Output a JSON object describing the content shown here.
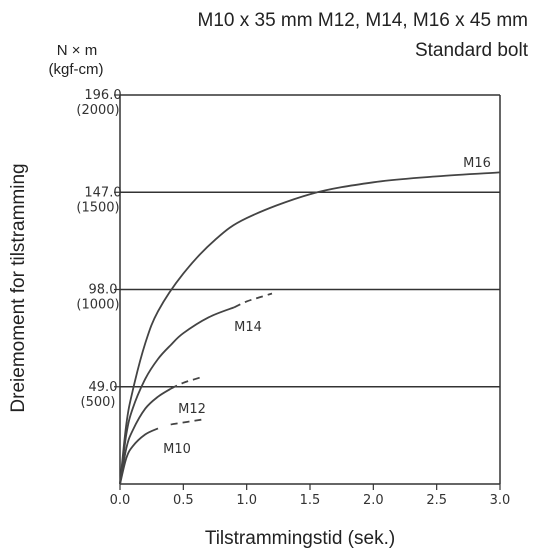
{
  "header": {
    "line1": "M10 x 35 mm M12, M14, M16 x 45 mm",
    "line2": "Standard bolt"
  },
  "units": {
    "primary": "N × m",
    "secondary": "(kgf-cm)"
  },
  "chart_data": {
    "type": "line",
    "title": "",
    "xlabel": "Tilstrammingstid (sek.)",
    "ylabel": "Dreiemoment for tilstramming",
    "xlim": [
      0,
      3.0
    ],
    "ylim": [
      0,
      196
    ],
    "x_ticks": [
      "0.0",
      "0.5",
      "1.0",
      "1.5",
      "2.0",
      "2.5",
      "3.0"
    ],
    "y_ticks": [
      {
        "value": 49,
        "label": "49.0",
        "sublabel": "(500)"
      },
      {
        "value": 98,
        "label": "98.0",
        "sublabel": "(1000)"
      },
      {
        "value": 147,
        "label": "147.0",
        "sublabel": "(1500)"
      },
      {
        "value": 196,
        "label": "196.0",
        "sublabel": "(2000)"
      }
    ],
    "grid_y": true,
    "series": [
      {
        "name": "M16",
        "x": [
          0,
          0.05,
          0.1,
          0.2,
          0.3,
          0.5,
          0.75,
          1.0,
          1.5,
          2.0,
          2.5,
          3.0
        ],
        "y": [
          0,
          30,
          47,
          71,
          87,
          106,
          123,
          134,
          146,
          152,
          155,
          157
        ],
        "dashed_from": null
      },
      {
        "name": "M14",
        "x": [
          0,
          0.05,
          0.1,
          0.2,
          0.3,
          0.4,
          0.5,
          0.7,
          0.9,
          1.0,
          1.1,
          1.2
        ],
        "y": [
          0,
          25,
          38,
          53,
          63,
          70,
          76,
          84,
          89,
          92,
          94,
          96
        ],
        "dashed_from": 0.9
      },
      {
        "name": "M12",
        "x": [
          0,
          0.05,
          0.1,
          0.2,
          0.3,
          0.4,
          0.5,
          0.6,
          0.65
        ],
        "y": [
          0,
          18,
          27,
          38,
          44,
          48,
          51,
          53,
          54
        ],
        "dashed_from": 0.4
      },
      {
        "name": "M10",
        "x": [
          0,
          0.05,
          0.1,
          0.2,
          0.3,
          0.4,
          0.5,
          0.6,
          0.65
        ],
        "y": [
          0,
          13,
          19,
          25,
          28,
          30,
          31,
          32,
          32.5
        ],
        "dashed_from": 0.35
      }
    ]
  }
}
